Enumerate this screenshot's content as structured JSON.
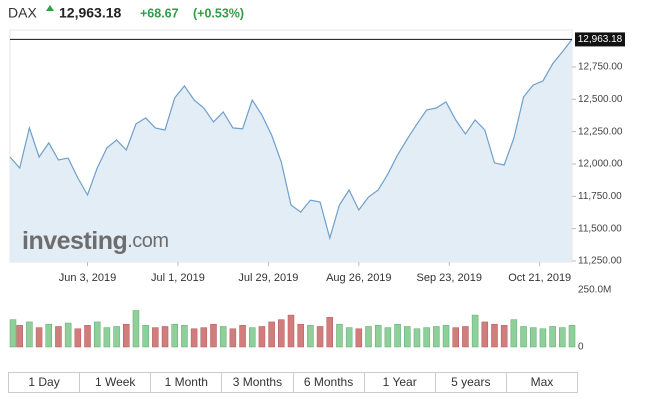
{
  "header": {
    "name": "DAX",
    "last": "12,963.18",
    "change": "+68.67",
    "change_pct": "(+0.53%)"
  },
  "watermark": {
    "brand": "investing",
    "suffix": ".com"
  },
  "ranges": [
    "1 Day",
    "1 Week",
    "1 Month",
    "3 Months",
    "6 Months",
    "1 Year",
    "5 years",
    "Max"
  ],
  "chart_data": [
    {
      "type": "area",
      "color": "#6f9fcb",
      "fill": "#e3edf5",
      "x": [
        "2019-05-10",
        "2019-05-13",
        "2019-05-16",
        "2019-05-19",
        "2019-05-22",
        "2019-05-25",
        "2019-05-28",
        "2019-05-31",
        "2019-06-03",
        "2019-06-06",
        "2019-06-09",
        "2019-06-12",
        "2019-06-15",
        "2019-06-18",
        "2019-06-21",
        "2019-06-24",
        "2019-06-27",
        "2019-06-30",
        "2019-07-03",
        "2019-07-06",
        "2019-07-09",
        "2019-07-12",
        "2019-07-15",
        "2019-07-18",
        "2019-07-21",
        "2019-07-24",
        "2019-07-27",
        "2019-07-30",
        "2019-08-02",
        "2019-08-05",
        "2019-08-08",
        "2019-08-11",
        "2019-08-14",
        "2019-08-17",
        "2019-08-20",
        "2019-08-23",
        "2019-08-26",
        "2019-08-29",
        "2019-09-01",
        "2019-09-04",
        "2019-09-07",
        "2019-09-10",
        "2019-09-13",
        "2019-09-16",
        "2019-09-19",
        "2019-09-22",
        "2019-09-25",
        "2019-09-28",
        "2019-10-01",
        "2019-10-04",
        "2019-10-07",
        "2019-10-10",
        "2019-10-13",
        "2019-10-16",
        "2019-10-19",
        "2019-10-22",
        "2019-10-25",
        "2019-10-28",
        "2019-10-31"
      ],
      "values": [
        12054,
        11969,
        12279,
        12054,
        12163,
        12031,
        12046,
        11892,
        11760,
        11969,
        12124,
        12186,
        12108,
        12310,
        12356,
        12279,
        12263,
        12511,
        12604,
        12495,
        12433,
        12325,
        12402,
        12279,
        12271,
        12495,
        12379,
        12224,
        12015,
        11683,
        11628,
        11721,
        11706,
        11427,
        11683,
        11799,
        11644,
        11745,
        11799,
        11923,
        12070,
        12194,
        12310,
        12418,
        12433,
        12480,
        12341,
        12232,
        12341,
        12263,
        12008,
        11992,
        12201,
        12519,
        12611,
        12642,
        12774,
        12867,
        12963.18
      ],
      "xlim": [
        "2019-05-10",
        "2019-10-31"
      ],
      "xticks": [
        {
          "value": "2019-06-03",
          "label": "Jun 3, 2019"
        },
        {
          "value": "2019-07-01",
          "label": "Jul 1, 2019"
        },
        {
          "value": "2019-07-29",
          "label": "Jul 29, 2019"
        },
        {
          "value": "2019-08-26",
          "label": "Aug 26, 2019"
        },
        {
          "value": "2019-09-23",
          "label": "Sep 23, 2019"
        },
        {
          "value": "2019-10-21",
          "label": "Oct 21, 2019"
        }
      ],
      "ylim": [
        11242,
        13036
      ],
      "yticks": [
        {
          "value": 11250,
          "label": "11,250.00"
        },
        {
          "value": 11500,
          "label": "11,500.00"
        },
        {
          "value": 11750,
          "label": "11,750.00"
        },
        {
          "value": 12000,
          "label": "12,000.00"
        },
        {
          "value": 12250,
          "label": "12,250.00"
        },
        {
          "value": 12500,
          "label": "12,500.00"
        },
        {
          "value": 12750,
          "label": "12,750.00"
        }
      ]
    },
    {
      "type": "bar",
      "up_color": "#8fcf9a",
      "down_color": "#d27d7d",
      "x": [
        "2019-05-10",
        "2019-05-13",
        "2019-05-16",
        "2019-05-19",
        "2019-05-22",
        "2019-05-25",
        "2019-05-28",
        "2019-05-31",
        "2019-06-03",
        "2019-06-06",
        "2019-06-09",
        "2019-06-12",
        "2019-06-15",
        "2019-06-18",
        "2019-06-21",
        "2019-06-24",
        "2019-06-27",
        "2019-06-30",
        "2019-07-03",
        "2019-07-06",
        "2019-07-09",
        "2019-07-12",
        "2019-07-15",
        "2019-07-18",
        "2019-07-21",
        "2019-07-24",
        "2019-07-27",
        "2019-07-30",
        "2019-08-02",
        "2019-08-05",
        "2019-08-08",
        "2019-08-11",
        "2019-08-14",
        "2019-08-17",
        "2019-08-20",
        "2019-08-23",
        "2019-08-26",
        "2019-08-29",
        "2019-09-01",
        "2019-09-04",
        "2019-09-07",
        "2019-09-10",
        "2019-09-13",
        "2019-09-16",
        "2019-09-19",
        "2019-09-22",
        "2019-09-25",
        "2019-09-28",
        "2019-10-01",
        "2019-10-04",
        "2019-10-07",
        "2019-10-10",
        "2019-10-13",
        "2019-10-16",
        "2019-10-19",
        "2019-10-22",
        "2019-10-25",
        "2019-10-28",
        "2019-10-31"
      ],
      "values": [
        120,
        95,
        110,
        85,
        100,
        90,
        105,
        80,
        95,
        110,
        85,
        90,
        100,
        160,
        95,
        85,
        90,
        100,
        95,
        80,
        85,
        100,
        90,
        80,
        95,
        85,
        90,
        110,
        120,
        140,
        100,
        95,
        90,
        130,
        100,
        85,
        80,
        90,
        95,
        85,
        100,
        90,
        80,
        85,
        90,
        95,
        85,
        90,
        140,
        110,
        100,
        95,
        120,
        90,
        85,
        80,
        90,
        85,
        95
      ],
      "xlim": [
        "2019-05-10",
        "2019-10-31"
      ],
      "ylim": [
        0,
        250
      ],
      "yticks": [
        0,
        {
          "value": 250,
          "label": "250.0M"
        }
      ]
    }
  ]
}
